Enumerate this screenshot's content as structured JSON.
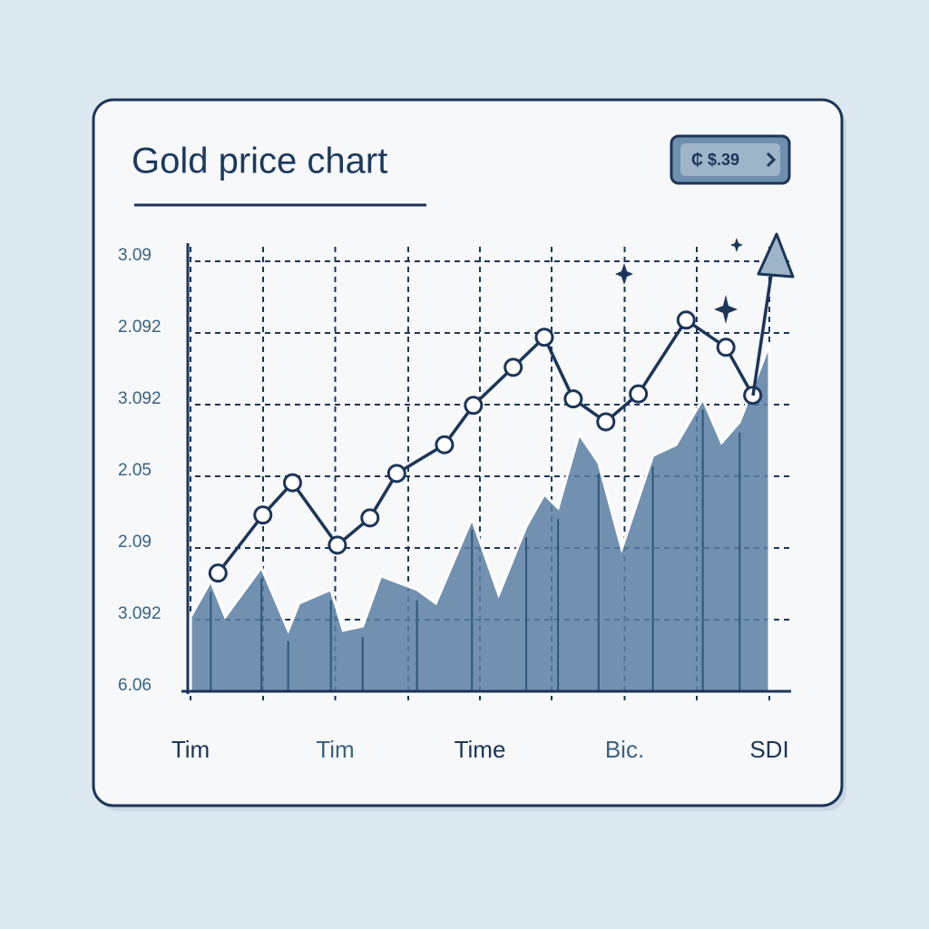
{
  "chart_data": {
    "type": "line",
    "title": "Gold price chart",
    "badge": "₵ $.39",
    "xlim": [
      0,
      8
    ],
    "xticks": [
      {
        "value": 0,
        "label": "Tim"
      },
      {
        "value": 2,
        "label": "Tim"
      },
      {
        "value": 4,
        "label": "Time"
      },
      {
        "value": 6,
        "label": "Bic."
      },
      {
        "value": 8,
        "label": "SDI"
      }
    ],
    "ylim": [
      0,
      6
    ],
    "yticks": [
      {
        "value": 6,
        "label": "3.09"
      },
      {
        "value": 5,
        "label": "2.092"
      },
      {
        "value": 4,
        "label": "3.092"
      },
      {
        "value": 3,
        "label": "2.05"
      },
      {
        "value": 2,
        "label": "2.09"
      },
      {
        "value": 1,
        "label": "3.092"
      },
      {
        "value": 0,
        "label": "6.06"
      }
    ],
    "grid": true,
    "series": [
      {
        "color": "#1d3557",
        "x": [
          0.38,
          1.0,
          1.41,
          2.03,
          2.48,
          2.85,
          3.51,
          3.91,
          4.46,
          4.89,
          5.29,
          5.74,
          6.19,
          6.85,
          7.4,
          7.77
        ],
        "values": [
          1.65,
          2.46,
          2.91,
          2.04,
          2.42,
          3.04,
          3.44,
          3.99,
          4.52,
          4.94,
          4.08,
          3.76,
          4.15,
          5.18,
          4.8,
          4.13
        ]
      },
      {
        "color": "#5a7fa3",
        "area": true,
        "x": [
          0,
          0.28,
          0.48,
          0.98,
          1.19,
          1.35,
          1.5,
          1.94,
          2.11,
          2.38,
          2.63,
          3.13,
          3.39,
          3.89,
          4.26,
          4.64,
          4.89,
          5.08,
          5.37,
          5.64,
          5.96,
          6.39,
          6.71,
          7.08,
          7.34,
          7.59,
          8.0
        ],
        "values": [
          1.04,
          1.54,
          1.04,
          1.73,
          1.23,
          0.85,
          1.23,
          1.42,
          0.85,
          0.91,
          1.61,
          1.42,
          1.23,
          2.41,
          1.35,
          2.3,
          2.75,
          2.56,
          3.59,
          3.19,
          1.99,
          3.29,
          3.44,
          4.08,
          3.47,
          3.76,
          4.84
        ]
      }
    ]
  }
}
